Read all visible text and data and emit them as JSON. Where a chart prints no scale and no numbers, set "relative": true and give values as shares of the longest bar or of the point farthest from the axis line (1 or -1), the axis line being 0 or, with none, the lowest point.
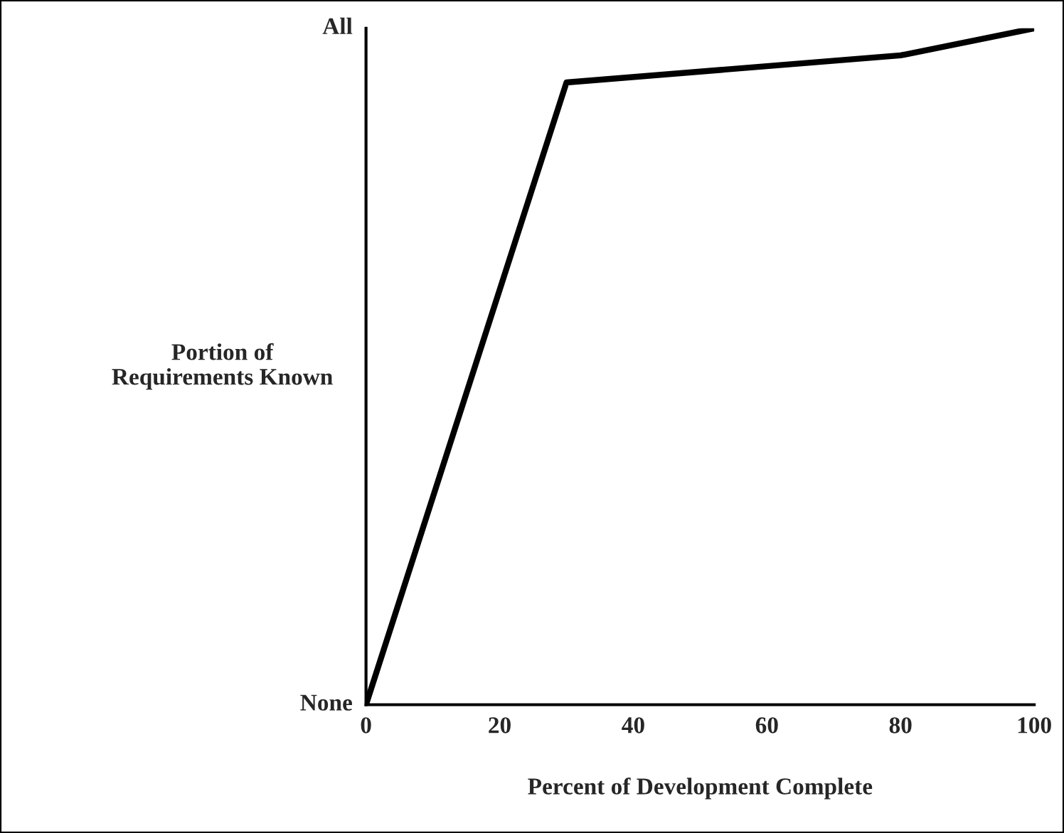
{
  "chart_data": {
    "type": "line",
    "xlabel": "Percent of Development Complete",
    "ylabel": "Portion of\nRequirements Known",
    "x": [
      0,
      30,
      80,
      100
    ],
    "series": [
      {
        "color": "#000000",
        "values": [
          0,
          0.92,
          0.96,
          1.0
        ]
      }
    ],
    "xlim": [
      0,
      100
    ],
    "xticks": [
      0,
      20,
      40,
      60,
      80,
      100
    ],
    "relative": true,
    "annotations": [
      "None",
      "All"
    ],
    "grid": false,
    "legend": false,
    "marker": "none",
    "line_style": "solid"
  }
}
